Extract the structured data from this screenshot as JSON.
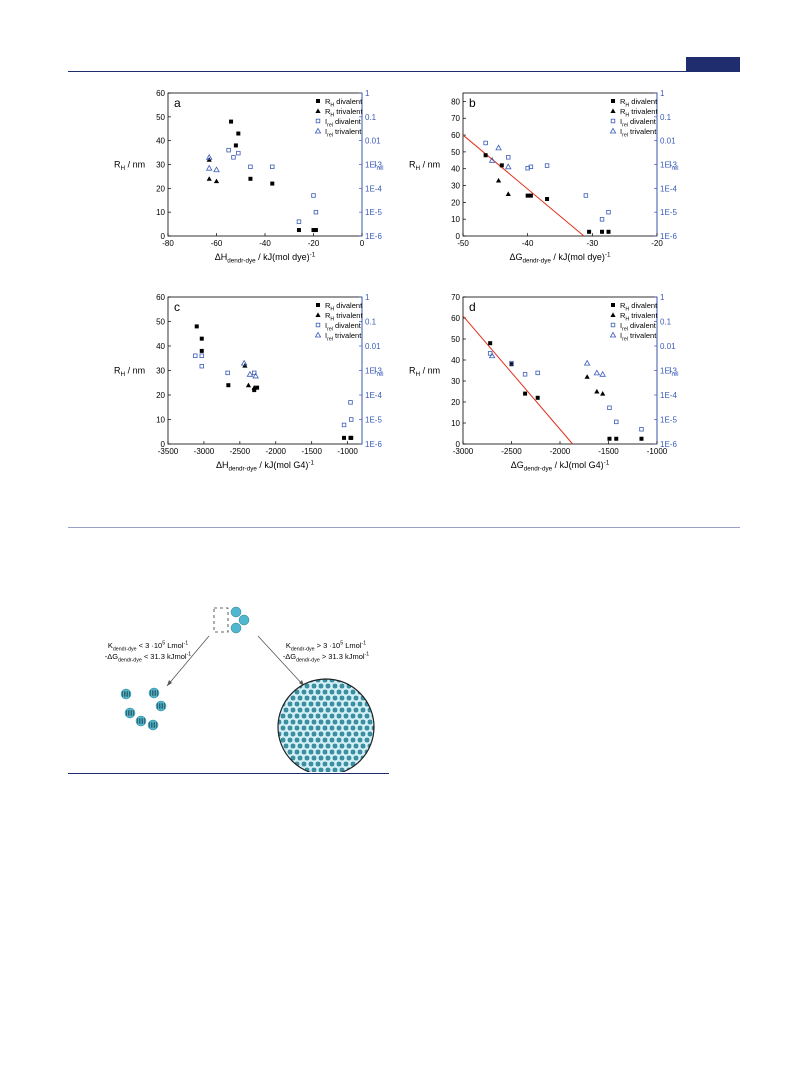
{
  "colors": {
    "rule": "#1f2d6e",
    "fit": "#e0301e",
    "irel": "#3a5bb8",
    "black": "#000000",
    "dye": "#4fb8cf"
  },
  "legend": {
    "rh_div": {
      "main": "R",
      "sub": "H",
      "rest": " divalent"
    },
    "rh_tri": {
      "main": "R",
      "sub": "H",
      "rest": " trivalent"
    },
    "irel_div": {
      "main": "I",
      "sub": "rel",
      "rest": " divalent"
    },
    "irel_tri": {
      "main": "I",
      "sub": "rel",
      "rest": " trivalent"
    }
  },
  "right_axis": {
    "ticks": [
      "1",
      "0.1",
      "0.01",
      "1E-3",
      "1E-4",
      "1E-5",
      "1E-6"
    ],
    "label_main": "I",
    "label_sub": "rel"
  },
  "chart_data": [
    {
      "type": "scatter",
      "letter": "a",
      "xlabel": {
        "main": "ΔH",
        "sub": "dendr-dye",
        "rest": " / kJ(mol dye)",
        "sup": "-1"
      },
      "ylabel": {
        "main": "R",
        "sub": "H",
        "rest": " / nm"
      },
      "xlim": [
        -80,
        0
      ],
      "ylim": [
        0,
        60
      ],
      "xticks": [
        -80,
        -60,
        -40,
        -20,
        0
      ],
      "yticks": [
        0,
        10,
        20,
        30,
        40,
        50,
        60
      ],
      "fit_line": null,
      "series": {
        "rh_div": [
          [
            -54,
            48
          ],
          [
            -51,
            43
          ],
          [
            -52,
            38
          ],
          [
            -46,
            24
          ],
          [
            -37,
            22
          ],
          [
            -26,
            2.5
          ],
          [
            -20,
            2.5
          ],
          [
            -19,
            2.5
          ]
        ],
        "rh_tri": [
          [
            -63,
            32
          ],
          [
            -63,
            24
          ],
          [
            -60,
            23
          ]
        ],
        "irel_div": [
          [
            -55,
            0.004
          ],
          [
            -53,
            0.002
          ],
          [
            -51,
            0.003
          ],
          [
            -46,
            0.0008
          ],
          [
            -37,
            0.0008
          ],
          [
            -26,
            4e-06
          ],
          [
            -20,
            5e-05
          ],
          [
            -19,
            1e-05
          ]
        ],
        "irel_tri": [
          [
            -63,
            0.002
          ],
          [
            -63,
            0.0007
          ],
          [
            -60,
            0.0006
          ]
        ]
      }
    },
    {
      "type": "scatter",
      "letter": "b",
      "xlabel": {
        "main": "ΔG",
        "sub": "dendr-dye",
        "rest": " / kJ(mol dye)",
        "sup": "-1"
      },
      "ylabel": {
        "main": "R",
        "sub": "H",
        "rest": " / nm"
      },
      "xlim": [
        -50,
        -20
      ],
      "ylim": [
        0,
        85
      ],
      "xticks": [
        -50,
        -40,
        -30,
        -20
      ],
      "yticks": [
        0,
        10,
        20,
        30,
        40,
        50,
        60,
        70,
        80
      ],
      "fit_line": [
        [
          -50,
          60
        ],
        [
          -31.3,
          0
        ]
      ],
      "series": {
        "rh_div": [
          [
            -46.5,
            48
          ],
          [
            -44,
            42
          ],
          [
            -40,
            24
          ],
          [
            -39.5,
            24
          ],
          [
            -37,
            22
          ],
          [
            -30.5,
            2.5
          ],
          [
            -28.5,
            2.5
          ],
          [
            -27.5,
            2.5
          ]
        ],
        "rh_tri": [
          [
            -44.5,
            33
          ],
          [
            -43,
            25
          ]
        ],
        "irel_div": [
          [
            -46.5,
            0.008
          ],
          [
            -43,
            0.002
          ],
          [
            -40,
            0.0007
          ],
          [
            -39.5,
            0.0008
          ],
          [
            -37,
            0.0009
          ],
          [
            -31,
            5e-05
          ],
          [
            -28.5,
            5e-06
          ],
          [
            -27.5,
            1e-05
          ]
        ],
        "irel_tri": [
          [
            -45.5,
            0.0015
          ],
          [
            -44.5,
            0.005
          ],
          [
            -43,
            0.0008
          ]
        ]
      }
    },
    {
      "type": "scatter",
      "letter": "c",
      "xlabel": {
        "main": "ΔH",
        "sub": "dendr-dye",
        "rest": " / kJ(mol G4)",
        "sup": "-1"
      },
      "ylabel": {
        "main": "R",
        "sub": "H",
        "rest": " / nm"
      },
      "xlim": [
        -3500,
        -800
      ],
      "ylim": [
        0,
        60
      ],
      "xticks": [
        -3500,
        -3000,
        -2500,
        -2000,
        -1500,
        -1000
      ],
      "yticks": [
        0,
        10,
        20,
        30,
        40,
        50,
        60
      ],
      "fit_line": null,
      "series": {
        "rh_div": [
          [
            -3100,
            48
          ],
          [
            -3030,
            43
          ],
          [
            -3030,
            38
          ],
          [
            -2660,
            24
          ],
          [
            -2300,
            22
          ],
          [
            -2260,
            23
          ],
          [
            -1050,
            2.5
          ],
          [
            -960,
            2.5
          ],
          [
            -950,
            2.5
          ]
        ],
        "rh_tri": [
          [
            -2430,
            32
          ],
          [
            -2380,
            24
          ],
          [
            -2300,
            23
          ]
        ],
        "irel_div": [
          [
            -3120,
            0.004
          ],
          [
            -3030,
            0.004
          ],
          [
            -3030,
            0.0015
          ],
          [
            -2670,
            0.0008
          ],
          [
            -2300,
            0.0008
          ],
          [
            -1050,
            6e-06
          ],
          [
            -960,
            5e-05
          ],
          [
            -950,
            1e-05
          ]
        ],
        "irel_tri": [
          [
            -2440,
            0.002
          ],
          [
            -2360,
            0.0007
          ],
          [
            -2280,
            0.0006
          ]
        ]
      }
    },
    {
      "type": "scatter",
      "letter": "d",
      "xlabel": {
        "main": "ΔG",
        "sub": "dendr-dye",
        "rest": " / kJ(mol G4)",
        "sup": "-1"
      },
      "ylabel": {
        "main": "R",
        "sub": "H",
        "rest": " / nm"
      },
      "xlim": [
        -3000,
        -1000
      ],
      "ylim": [
        0,
        70
      ],
      "xticks": [
        -3000,
        -2500,
        -2000,
        -1500,
        -1000
      ],
      "yticks": [
        0,
        10,
        20,
        30,
        40,
        50,
        60,
        70
      ],
      "fit_line": [
        [
          -3000,
          61
        ],
        [
          -1870,
          0
        ]
      ],
      "series": {
        "rh_div": [
          [
            -2720,
            48
          ],
          [
            -2500,
            38
          ],
          [
            -2360,
            24
          ],
          [
            -2230,
            22
          ],
          [
            -1490,
            2.5
          ],
          [
            -1420,
            2.5
          ],
          [
            -1160,
            2.5
          ]
        ],
        "rh_tri": [
          [
            -1720,
            32
          ],
          [
            -1620,
            25
          ],
          [
            -1560,
            24
          ]
        ],
        "irel_div": [
          [
            -2720,
            0.005
          ],
          [
            -2500,
            0.002
          ],
          [
            -2360,
            0.0007
          ],
          [
            -2230,
            0.0008
          ],
          [
            -1490,
            3e-05
          ],
          [
            -1420,
            8e-06
          ],
          [
            -1160,
            4e-06
          ]
        ],
        "irel_tri": [
          [
            -2700,
            0.004
          ],
          [
            -1720,
            0.002
          ],
          [
            -1620,
            0.0008
          ],
          [
            -1560,
            0.0007
          ]
        ]
      }
    }
  ],
  "scheme": {
    "left_line1": {
      "main": "K",
      "sub": "dendr-dye",
      "rest": " < 3 ·10",
      "sup": "5",
      "tail": " Lmol",
      "sup2": "-1"
    },
    "left_line2": {
      "main": "-ΔG",
      "sub": "dendr-dye",
      "rest": " < 31.3 kJmol",
      "sup": "-1"
    },
    "right_line1": {
      "main": "K",
      "sub": "dendr-dye",
      "rest": " > 3 ·10",
      "sup": "5",
      "tail": " Lmol",
      "sup2": "-1"
    },
    "right_line2": {
      "main": "-ΔG",
      "sub": "dendr-dye",
      "rest": " > 31.3 kJmol",
      "sup": "-1"
    }
  }
}
